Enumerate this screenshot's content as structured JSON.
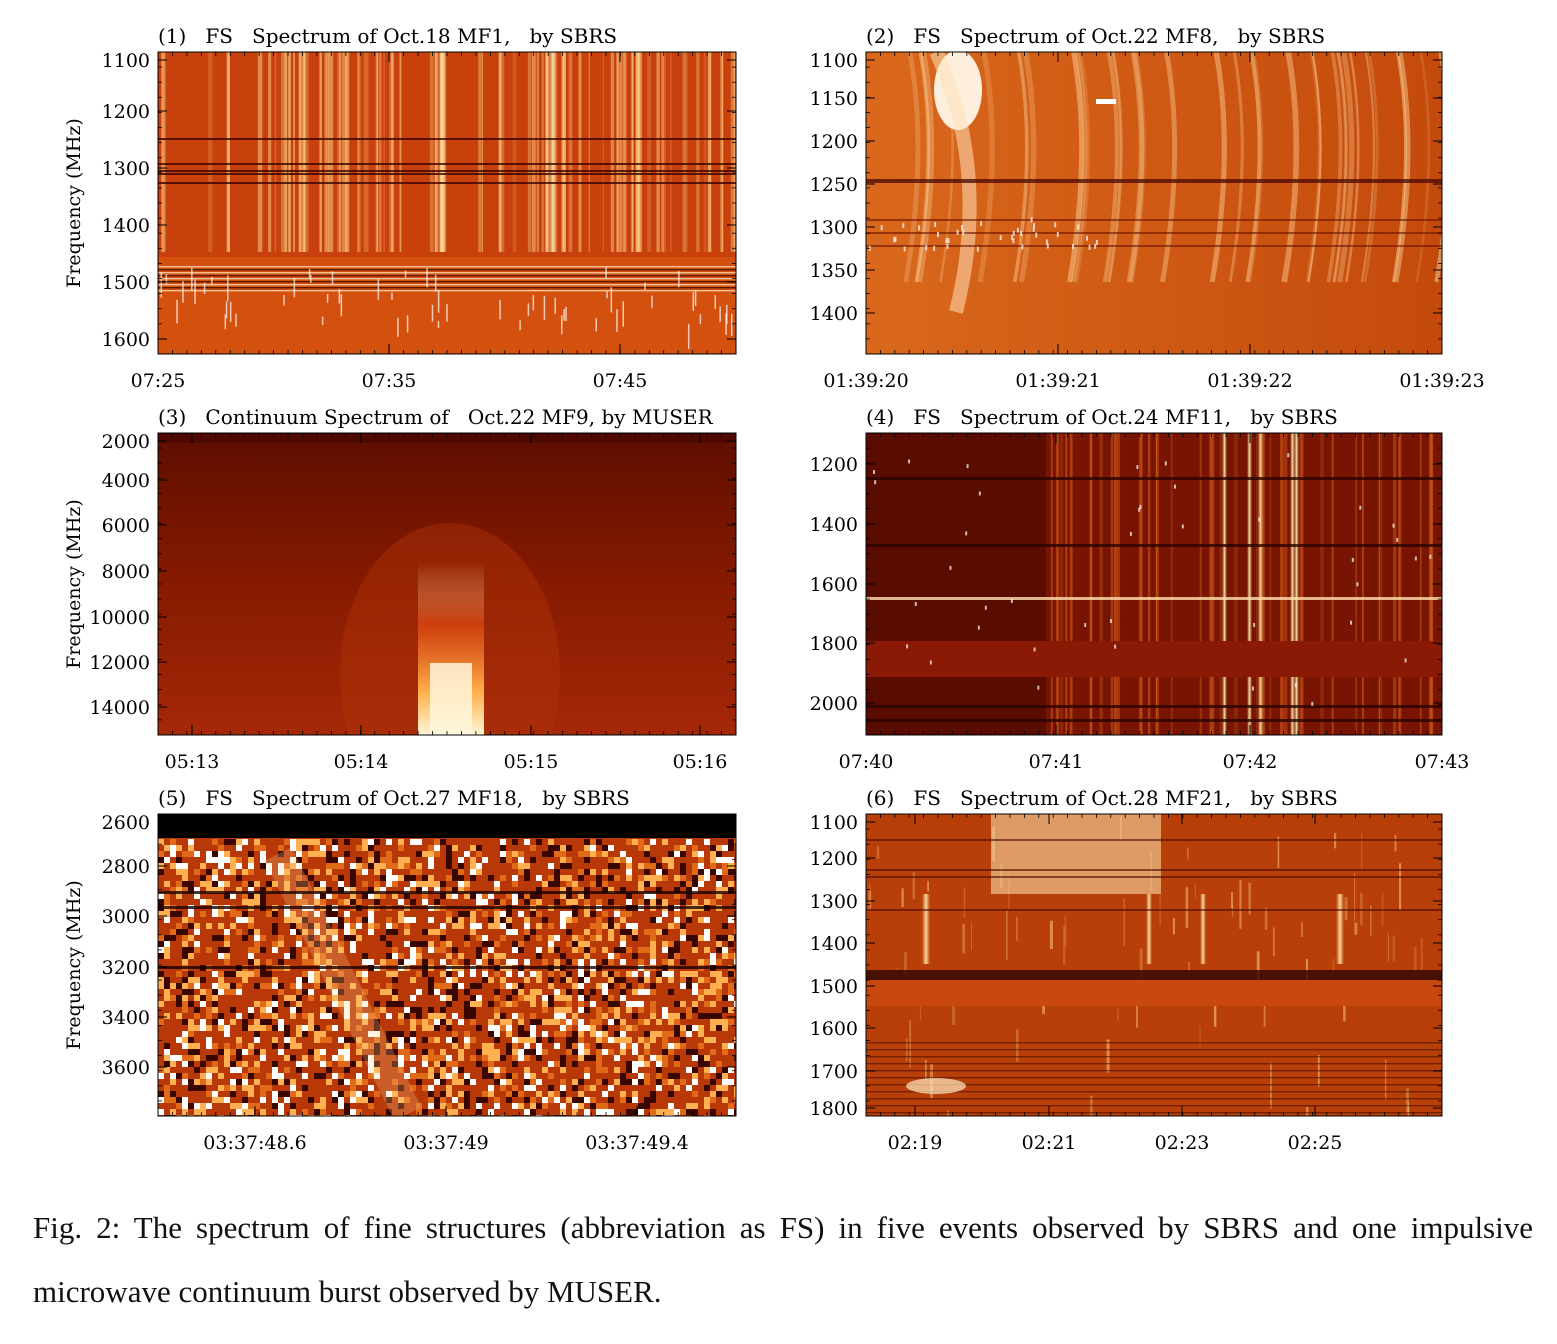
{
  "figure": {
    "panels": [
      {
        "title": "(1)   FS   Spectrum of Oct.18 MF1,   by SBRS",
        "ylabel": "Frequency (MHz)",
        "y_ticks": [
          "1100",
          "1200",
          "1300",
          "1400",
          "1500",
          "1600"
        ],
        "x_ticks": [
          "07:25",
          "07:35",
          "07:45"
        ],
        "features": "vertical bright fine-structure stripes; band of horizontal interference lines near 1470-1520 MHz",
        "colors": {
          "bg": "#c8400c",
          "hi": "#ffd07a"
        }
      },
      {
        "title": "(2)   FS   Spectrum of Oct.22 MF8,   by SBRS",
        "ylabel": "",
        "y_ticks": [
          "1100",
          "1150",
          "1200",
          "1250",
          "1300",
          "1350",
          "1400"
        ],
        "x_ticks": [
          "01:39:20",
          "01:39:21",
          "01:39:22",
          "01:39:23"
        ],
        "features": "drifting bright stripes upper left; dark line at 1250 MHz",
        "colors": {
          "bg": "#cd5410",
          "hi": "#fff3d8"
        }
      },
      {
        "title": "(3)   Continuum Spectrum of   Oct.22 MF9, by MUSER",
        "ylabel": "Frequency (MHz)",
        "y_ticks": [
          "2000",
          "4000",
          "6000",
          "8000",
          "10000",
          "12000",
          "14000"
        ],
        "x_ticks": [
          "05:13",
          "05:14",
          "05:15",
          "05:16"
        ],
        "features": "single impulsive continuum burst centred near 05:14.5, brightest at high frequency",
        "colors": {
          "bg": "#7a1400",
          "hi": "#fff2c0"
        }
      },
      {
        "title": "(4)   FS   Spectrum of Oct.24 MF11,   by SBRS",
        "ylabel": "",
        "y_ticks": [
          "1200",
          "1400",
          "1600",
          "1800",
          "2000"
        ],
        "x_ticks": [
          "07:40",
          "07:41",
          "07:42",
          "07:43"
        ],
        "features": "dark background with bright vertical spikes near 07:42; flat band around 1800-1900 MHz",
        "colors": {
          "bg": "#5a0c00",
          "hi": "#fff0c8"
        }
      },
      {
        "title": "(5)   FS   Spectrum of Oct.27 MF18,   by SBRS",
        "ylabel": "Frequency (MHz)",
        "y_ticks": [
          "2600",
          "2800",
          "3000",
          "3200",
          "3400",
          "3600"
        ],
        "x_ticks": [
          "03:37:48.6",
          "03:37:49",
          "03:37:49.4"
        ],
        "features": "noisy pixelated spectrum; black band at top; faint diagonal structure",
        "colors": {
          "bg": "#b83808",
          "hi": "#ffe8b0"
        }
      },
      {
        "title": "(6)   FS   Spectrum of Oct.28 MF21,   by SBRS",
        "ylabel": "",
        "y_ticks": [
          "1100",
          "1200",
          "1300",
          "1400",
          "1500",
          "1600",
          "1700",
          "1800"
        ],
        "x_ticks": [
          "02:19",
          "02:21",
          "02:23",
          "02:25"
        ],
        "features": "bright patch top centre; flat band near 1500 MHz; many horizontal interference lines",
        "colors": {
          "bg": "#b84008",
          "hi": "#fff0c0"
        }
      }
    ]
  },
  "caption": {
    "text": "Fig. 2: The spectrum of fine structures (abbreviation as FS) in five events observed by SBRS and one impulsive microwave continuum burst observed by MUSER."
  }
}
